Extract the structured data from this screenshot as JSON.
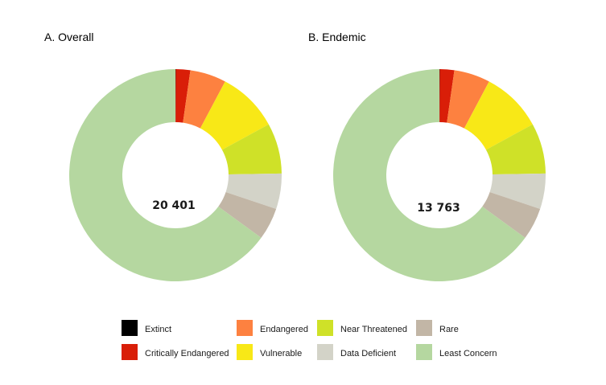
{
  "chart_data": [
    {
      "type": "donut",
      "title": "A. Overall",
      "total_label": "20 401",
      "categories": [
        "Extinct",
        "Critically Endangered",
        "Endangered",
        "Vulnerable",
        "Near Threatened",
        "Data Deficient",
        "Rare",
        "Least Concern"
      ],
      "values": [
        0.05,
        2.2,
        5.5,
        9.3,
        7.7,
        5.4,
        4.9,
        64.95
      ]
    },
    {
      "type": "donut",
      "title": "B. Endemic",
      "total_label": "13 763",
      "categories": [
        "Extinct",
        "Critically Endangered",
        "Endangered",
        "Vulnerable",
        "Near Threatened",
        "Data Deficient",
        "Rare",
        "Least Concern"
      ],
      "values": [
        0.05,
        2.2,
        5.5,
        9.3,
        7.7,
        5.4,
        4.9,
        64.95
      ]
    }
  ],
  "legend": [
    {
      "label": "Extinct",
      "color": "#000000"
    },
    {
      "label": "Critically Endangered",
      "color": "#d91e08"
    },
    {
      "label": "Endangered",
      "color": "#fd8140"
    },
    {
      "label": "Vulnerable",
      "color": "#f8e817"
    },
    {
      "label": "Near Threatened",
      "color": "#cfe128"
    },
    {
      "label": "Data Deficient",
      "color": "#d3d3c8"
    },
    {
      "label": "Rare",
      "color": "#c2b6a6"
    },
    {
      "label": "Least Concern",
      "color": "#b5d7a0"
    }
  ]
}
